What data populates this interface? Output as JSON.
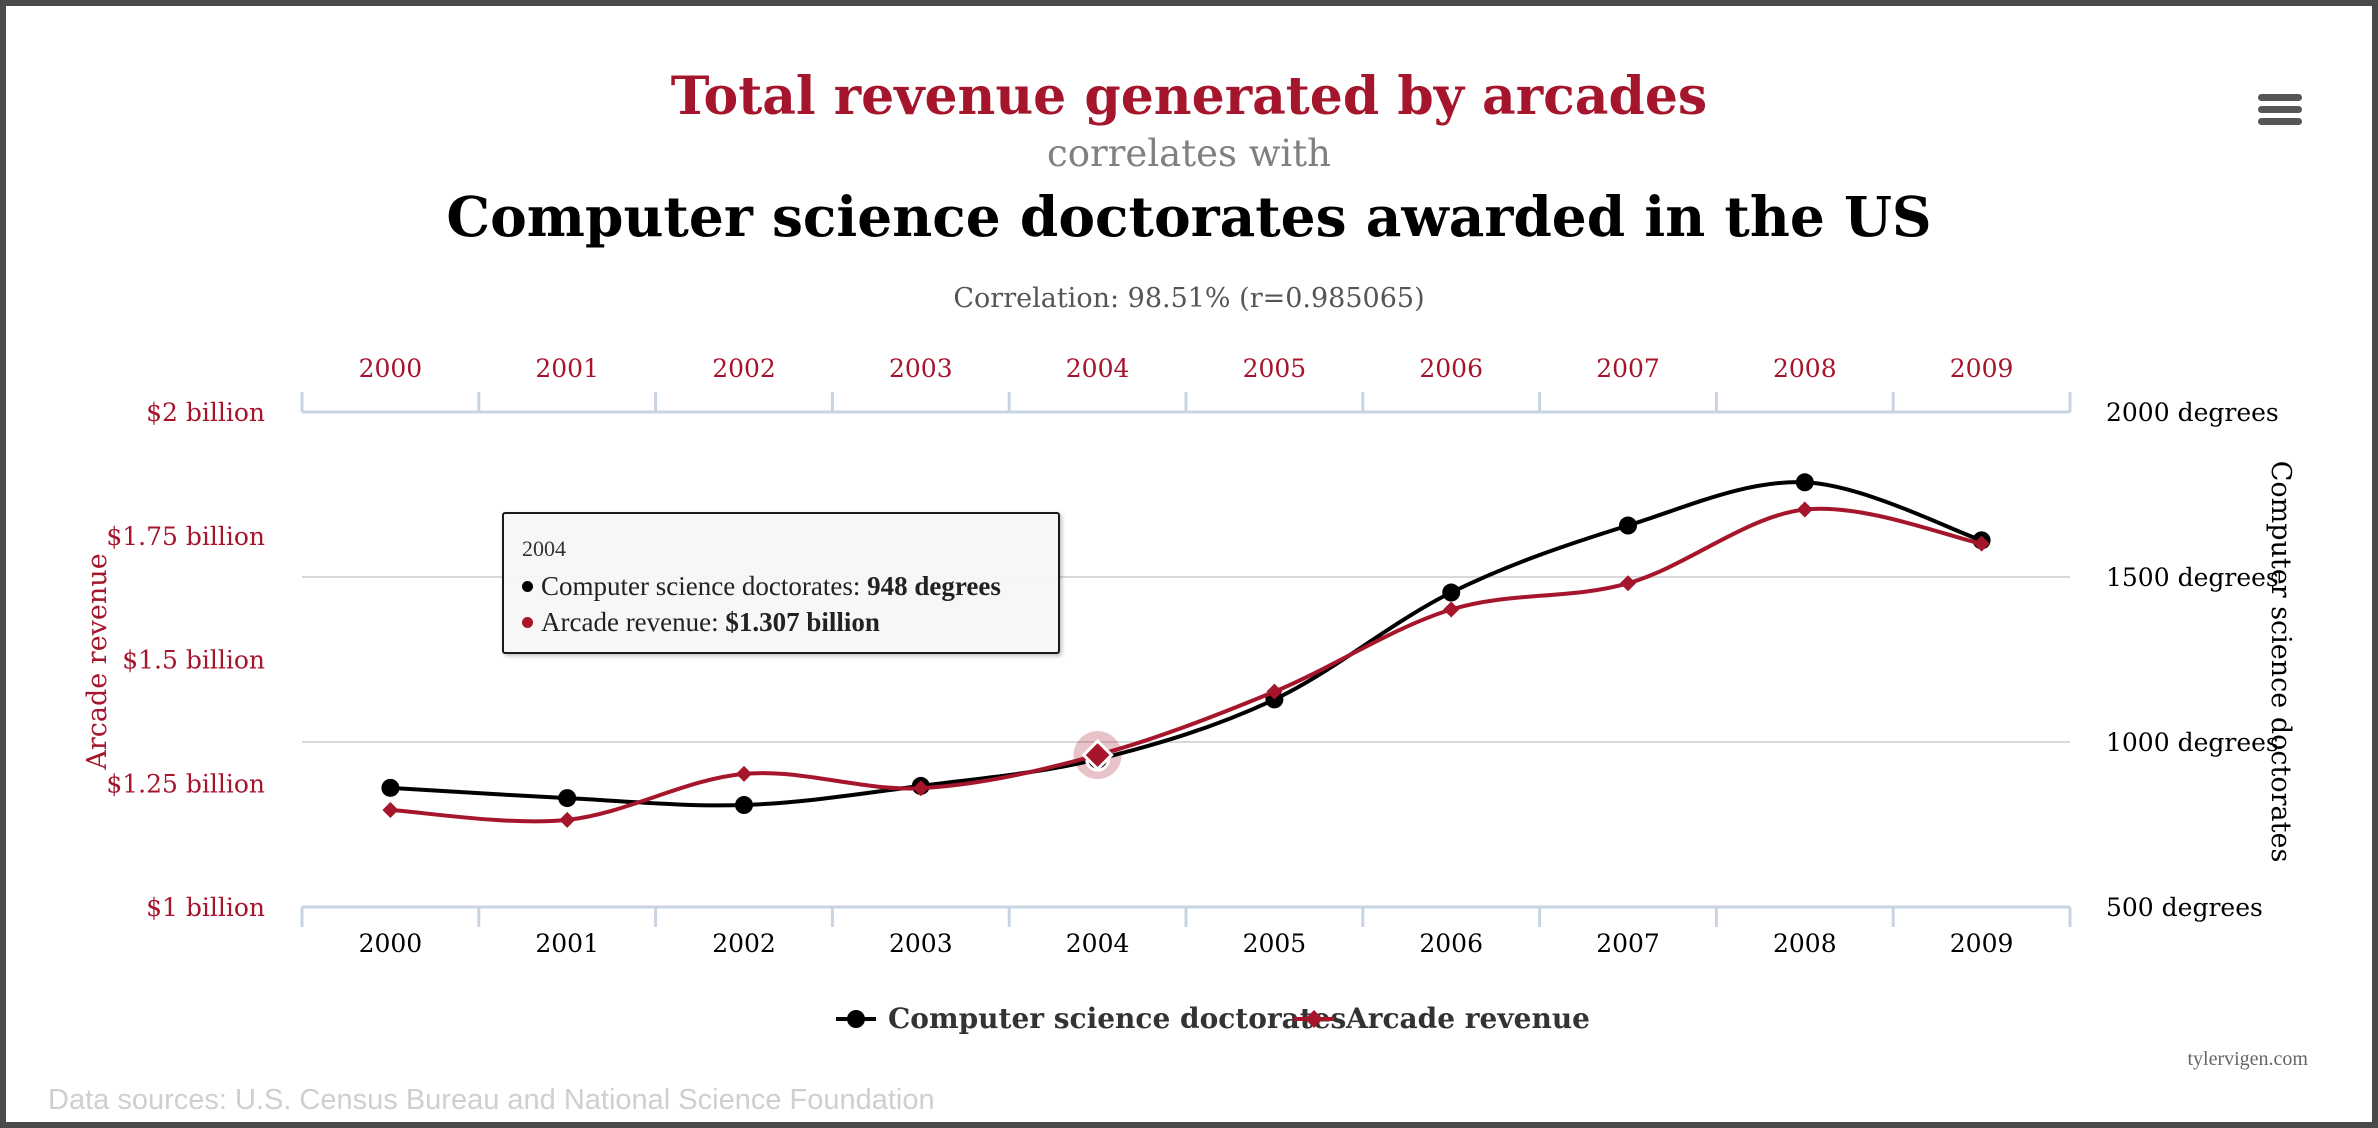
{
  "header": {
    "title": "Total revenue generated by arcades",
    "connector": "correlates with",
    "subtitle": "Computer science doctorates awarded in the US",
    "correlation": "Correlation: 98.51% (r=0.985065)"
  },
  "colors": {
    "accent_red": "#a5152c",
    "series_black": "#000000",
    "grid": "#d8d8d8",
    "axis_line": "#c9d4e3"
  },
  "icons": {
    "menu": "hamburger-menu-icon"
  },
  "tooltip": {
    "year": "2004",
    "row1_label": "Computer science doctorates: ",
    "row1_value": "948 degrees",
    "row2_label": "Arcade revenue: ",
    "row2_value": "$1.307 billion"
  },
  "footer": {
    "source": "Data sources: U.S. Census Bureau and National Science Foundation",
    "credit": "tylervigen.com"
  },
  "chart_data": {
    "type": "line",
    "categories": [
      "2000",
      "2001",
      "2002",
      "2003",
      "2004",
      "2005",
      "2006",
      "2007",
      "2008",
      "2009"
    ],
    "series": [
      {
        "name": "Computer science doctorates",
        "axis": "right",
        "color": "#000000",
        "marker": "circle",
        "values": [
          861,
          830,
          809,
          867,
          948,
          1129,
          1453,
          1656,
          1787,
          1611
        ]
      },
      {
        "name": "Arcade revenue",
        "axis": "left",
        "color": "#a5152c",
        "marker": "diamond",
        "values": [
          1.196,
          1.176,
          1.269,
          1.24,
          1.307,
          1.435,
          1.601,
          1.654,
          1.803,
          1.734
        ]
      }
    ],
    "left_axis": {
      "label": "Arcade revenue",
      "ylim": [
        1,
        2
      ],
      "ticks": [
        1,
        1.25,
        1.5,
        1.75,
        2
      ],
      "tick_labels": [
        "$1 billion",
        "$1.25 billion",
        "$1.5 billion",
        "$1.75 billion",
        "$2 billion"
      ]
    },
    "right_axis": {
      "label": "Computer science doctorates",
      "ylim": [
        500,
        2000
      ],
      "ticks": [
        500,
        1000,
        1500,
        2000
      ],
      "tick_labels": [
        "500 degrees",
        "1000 degrees",
        "1500 degrees",
        "2000 degrees"
      ]
    },
    "highlighted_category": "2004",
    "grid": true,
    "legend": {
      "position": "bottom",
      "entries": [
        "Computer science doctorates",
        "Arcade revenue"
      ]
    }
  }
}
